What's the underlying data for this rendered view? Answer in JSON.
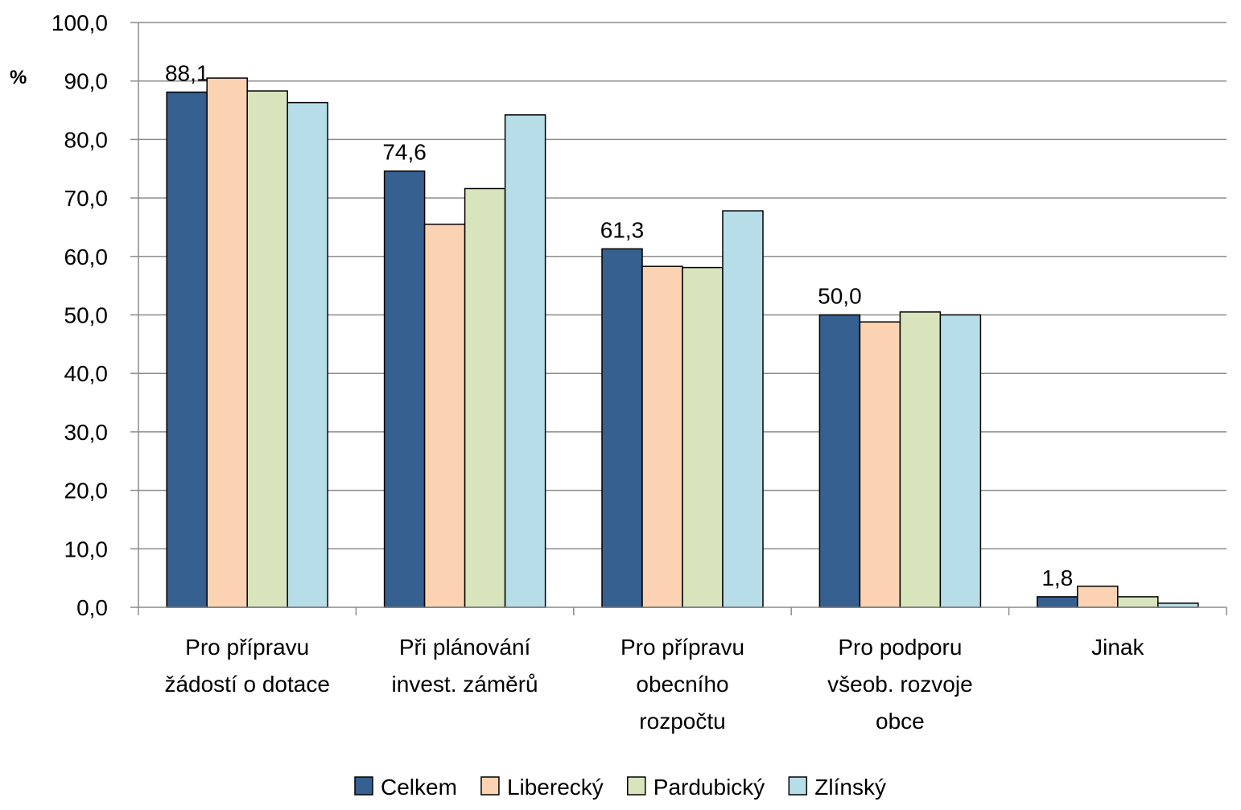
{
  "chart_data": {
    "type": "bar",
    "title": "",
    "xlabel": "",
    "ylabel": "%",
    "ylim": [
      0,
      100
    ],
    "yticks": [
      "0,0",
      "10,0",
      "20,0",
      "30,0",
      "40,0",
      "50,0",
      "60,0",
      "70,0",
      "80,0",
      "90,0",
      "100,0"
    ],
    "grid": true,
    "legend_position": "bottom",
    "categories": [
      [
        "Pro přípravu",
        "žádostí o dotace"
      ],
      [
        "Při plánování",
        "invest. záměrů"
      ],
      [
        "Pro přípravu",
        "obecního",
        "rozpočtu"
      ],
      [
        "Pro podporu",
        "všeob. rozvoje",
        "obce"
      ],
      [
        "Jinak"
      ]
    ],
    "series": [
      {
        "name": "Celkem",
        "color": "#35608f",
        "values": [
          88.1,
          74.6,
          61.3,
          50.0,
          1.8
        ]
      },
      {
        "name": "Liberecký",
        "color": "#fbd3b3",
        "values": [
          90.5,
          65.5,
          58.3,
          48.8,
          3.6
        ]
      },
      {
        "name": "Pardubický",
        "color": "#d8e4bc",
        "values": [
          88.3,
          71.6,
          58.1,
          50.5,
          1.8
        ]
      },
      {
        "name": "Zlínský",
        "color": "#b7dee8",
        "values": [
          86.3,
          84.2,
          67.8,
          50.0,
          0.7
        ]
      }
    ],
    "data_labels": [
      "88,1",
      "74,6",
      "61,3",
      "50,0",
      "1,8"
    ]
  }
}
